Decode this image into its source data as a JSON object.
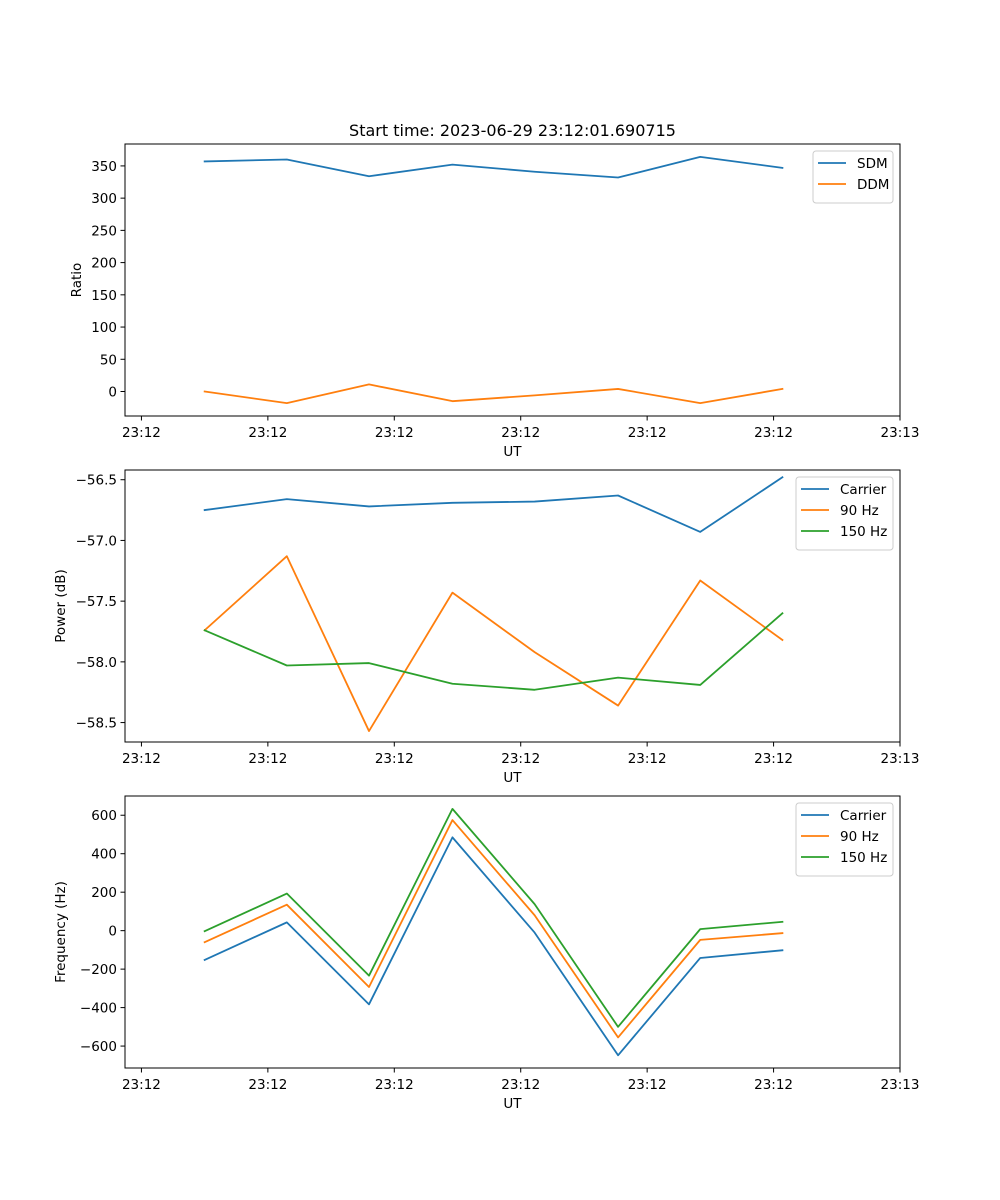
{
  "figure": {
    "title": "Start time: 2023-06-29 23:12:01.690715"
  },
  "chart_data": [
    {
      "type": "line",
      "title": "Start time: 2023-06-29 23:12:01.690715",
      "xlabel": "UT",
      "ylabel": "Ratio",
      "x_tick_labels": [
        "23:12",
        "23:12",
        "23:12",
        "23:12",
        "23:12",
        "23:12",
        "23:13"
      ],
      "x_tick_values": [
        0,
        1,
        2,
        3,
        4,
        5,
        6
      ],
      "xlim": [
        -0.13,
        6.0
      ],
      "x": [
        0.5,
        1.15,
        1.8,
        2.46,
        3.11,
        3.77,
        4.42,
        5.07
      ],
      "y_ticks": [
        0,
        50,
        100,
        150,
        200,
        250,
        300,
        350
      ],
      "ylim": [
        -38,
        384
      ],
      "grid": false,
      "legend": "top-right",
      "series": [
        {
          "name": "SDM",
          "color": "#1f77b4",
          "values": [
            357,
            360,
            334,
            352,
            341,
            332,
            364,
            347
          ]
        },
        {
          "name": "DDM",
          "color": "#ff7f0e",
          "values": [
            0,
            -18,
            11,
            -15,
            -6,
            4,
            -18,
            4
          ]
        }
      ]
    },
    {
      "type": "line",
      "xlabel": "UT",
      "ylabel": "Power (dB)",
      "x_tick_labels": [
        "23:12",
        "23:12",
        "23:12",
        "23:12",
        "23:12",
        "23:12",
        "23:13"
      ],
      "x_tick_values": [
        0,
        1,
        2,
        3,
        4,
        5,
        6
      ],
      "xlim": [
        -0.13,
        6.0
      ],
      "x": [
        0.5,
        1.15,
        1.8,
        2.46,
        3.11,
        3.77,
        4.42,
        5.07
      ],
      "y_ticks": [
        -58.5,
        -58.0,
        -57.5,
        -57.0,
        -56.5
      ],
      "y_tick_labels": [
        "−58.5",
        "−58.0",
        "−57.5",
        "−57.0",
        "−56.5"
      ],
      "ylim": [
        -58.66,
        -56.42
      ],
      "grid": false,
      "legend": "top-right",
      "series": [
        {
          "name": "Carrier",
          "color": "#1f77b4",
          "values": [
            -56.75,
            -56.66,
            -56.72,
            -56.69,
            -56.68,
            -56.63,
            -56.93,
            -56.48
          ]
        },
        {
          "name": "90 Hz",
          "color": "#ff7f0e",
          "values": [
            -57.74,
            -57.13,
            -58.57,
            -57.43,
            -57.92,
            -58.36,
            -57.33,
            -57.82
          ]
        },
        {
          "name": "150 Hz",
          "color": "#2ca02c",
          "values": [
            -57.74,
            -58.03,
            -58.01,
            -58.18,
            -58.23,
            -58.13,
            -58.19,
            -57.6
          ]
        }
      ]
    },
    {
      "type": "line",
      "xlabel": "UT",
      "ylabel": "Frequency (Hz)",
      "x_tick_labels": [
        "23:12",
        "23:12",
        "23:12",
        "23:12",
        "23:12",
        "23:12",
        "23:13"
      ],
      "x_tick_values": [
        0,
        1,
        2,
        3,
        4,
        5,
        6
      ],
      "xlim": [
        -0.13,
        6.0
      ],
      "x": [
        0.5,
        1.15,
        1.8,
        2.46,
        3.11,
        3.77,
        4.42,
        5.07
      ],
      "y_ticks": [
        -600,
        -400,
        -200,
        0,
        200,
        400,
        600
      ],
      "y_tick_labels": [
        "−600",
        "−400",
        "−200",
        "0",
        "200",
        "400",
        "600"
      ],
      "ylim": [
        -714,
        700
      ],
      "grid": false,
      "legend": "top-right",
      "series": [
        {
          "name": "Carrier",
          "color": "#1f77b4",
          "values": [
            -152,
            43,
            -383,
            485,
            -10,
            -648,
            -142,
            -102
          ]
        },
        {
          "name": "90 Hz",
          "color": "#ff7f0e",
          "values": [
            -60,
            135,
            -293,
            575,
            80,
            -555,
            -48,
            -13
          ]
        },
        {
          "name": "150 Hz",
          "color": "#2ca02c",
          "values": [
            -3,
            193,
            -234,
            633,
            138,
            -500,
            8,
            46
          ]
        }
      ]
    }
  ]
}
